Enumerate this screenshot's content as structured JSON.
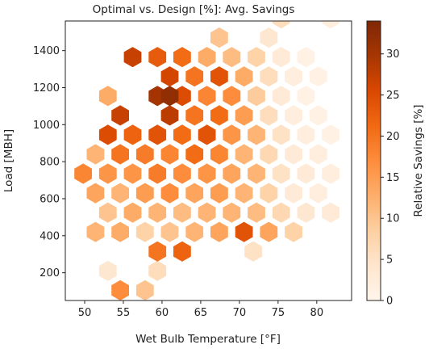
{
  "chart_data": {
    "type": "hexbin",
    "title": "Optimal vs. Design [%]: Avg. Savings",
    "xlabel": "Wet Bulb Temperature [°F]",
    "ylabel": "Load [MBH]",
    "xlim": [
      47.5,
      84.5
    ],
    "ylim": [
      50,
      1560
    ],
    "xticks": [
      50,
      55,
      60,
      65,
      70,
      75,
      80
    ],
    "yticks": [
      200,
      400,
      600,
      800,
      1000,
      1200,
      1400
    ],
    "colorbar": {
      "label": "Relative Savings [%]",
      "range": [
        0,
        34
      ],
      "ticks": [
        0,
        5,
        10,
        15,
        20,
        25,
        30
      ],
      "colormap": "Oranges",
      "colors": [
        "#fff5eb",
        "#fee6ce",
        "#fdd0a2",
        "#fdae6b",
        "#fd8d3c",
        "#f16913",
        "#d94801",
        "#a63603",
        "#7f2704"
      ]
    },
    "grid": false,
    "cells": [
      {
        "x": 54.6,
        "y": 105,
        "v": 17
      },
      {
        "x": 57.8,
        "y": 105,
        "v": 10
      },
      {
        "x": 53.0,
        "y": 210,
        "v": 4
      },
      {
        "x": 59.4,
        "y": 210,
        "v": 6
      },
      {
        "x": 59.4,
        "y": 315,
        "v": 20
      },
      {
        "x": 62.6,
        "y": 315,
        "v": 22
      },
      {
        "x": 71.8,
        "y": 315,
        "v": 5
      },
      {
        "x": 51.4,
        "y": 420,
        "v": 12
      },
      {
        "x": 54.6,
        "y": 420,
        "v": 13
      },
      {
        "x": 57.8,
        "y": 420,
        "v": 8
      },
      {
        "x": 61.0,
        "y": 420,
        "v": 10
      },
      {
        "x": 64.2,
        "y": 420,
        "v": 12
      },
      {
        "x": 67.4,
        "y": 420,
        "v": 14
      },
      {
        "x": 70.6,
        "y": 420,
        "v": 24
      },
      {
        "x": 73.8,
        "y": 420,
        "v": 14
      },
      {
        "x": 77.0,
        "y": 420,
        "v": 8
      },
      {
        "x": 53.0,
        "y": 525,
        "v": 10
      },
      {
        "x": 56.2,
        "y": 525,
        "v": 13
      },
      {
        "x": 59.4,
        "y": 525,
        "v": 12
      },
      {
        "x": 62.6,
        "y": 525,
        "v": 11
      },
      {
        "x": 65.8,
        "y": 525,
        "v": 12
      },
      {
        "x": 69.0,
        "y": 525,
        "v": 12
      },
      {
        "x": 72.2,
        "y": 525,
        "v": 11
      },
      {
        "x": 75.4,
        "y": 525,
        "v": 7
      },
      {
        "x": 78.6,
        "y": 525,
        "v": 4
      },
      {
        "x": 81.8,
        "y": 525,
        "v": 3
      },
      {
        "x": 51.4,
        "y": 630,
        "v": 14
      },
      {
        "x": 54.6,
        "y": 630,
        "v": 12
      },
      {
        "x": 57.8,
        "y": 630,
        "v": 15
      },
      {
        "x": 61.0,
        "y": 630,
        "v": 17
      },
      {
        "x": 64.2,
        "y": 630,
        "v": 14
      },
      {
        "x": 67.4,
        "y": 630,
        "v": 15
      },
      {
        "x": 70.6,
        "y": 630,
        "v": 12
      },
      {
        "x": 73.8,
        "y": 630,
        "v": 8
      },
      {
        "x": 77.0,
        "y": 630,
        "v": 3
      },
      {
        "x": 80.2,
        "y": 630,
        "v": 2
      },
      {
        "x": 49.8,
        "y": 735,
        "v": 18
      },
      {
        "x": 53.0,
        "y": 735,
        "v": 16
      },
      {
        "x": 56.2,
        "y": 735,
        "v": 16
      },
      {
        "x": 59.4,
        "y": 735,
        "v": 19
      },
      {
        "x": 62.6,
        "y": 735,
        "v": 17
      },
      {
        "x": 65.8,
        "y": 735,
        "v": 16
      },
      {
        "x": 69.0,
        "y": 735,
        "v": 14
      },
      {
        "x": 72.2,
        "y": 735,
        "v": 12
      },
      {
        "x": 75.4,
        "y": 735,
        "v": 5
      },
      {
        "x": 78.6,
        "y": 735,
        "v": 3
      },
      {
        "x": 81.8,
        "y": 735,
        "v": 2
      },
      {
        "x": 51.4,
        "y": 840,
        "v": 12
      },
      {
        "x": 54.6,
        "y": 840,
        "v": 20
      },
      {
        "x": 57.8,
        "y": 840,
        "v": 19
      },
      {
        "x": 61.0,
        "y": 840,
        "v": 18
      },
      {
        "x": 64.2,
        "y": 840,
        "v": 21
      },
      {
        "x": 67.4,
        "y": 840,
        "v": 18
      },
      {
        "x": 70.6,
        "y": 840,
        "v": 12
      },
      {
        "x": 73.8,
        "y": 840,
        "v": 7
      },
      {
        "x": 77.0,
        "y": 840,
        "v": 3
      },
      {
        "x": 80.2,
        "y": 840,
        "v": 2
      },
      {
        "x": 53.0,
        "y": 945,
        "v": 25
      },
      {
        "x": 56.2,
        "y": 945,
        "v": 22
      },
      {
        "x": 59.4,
        "y": 945,
        "v": 24
      },
      {
        "x": 62.6,
        "y": 945,
        "v": 21
      },
      {
        "x": 65.8,
        "y": 945,
        "v": 24
      },
      {
        "x": 69.0,
        "y": 945,
        "v": 16
      },
      {
        "x": 72.2,
        "y": 945,
        "v": 12
      },
      {
        "x": 75.4,
        "y": 945,
        "v": 5
      },
      {
        "x": 78.6,
        "y": 945,
        "v": 2
      },
      {
        "x": 81.8,
        "y": 945,
        "v": 1
      },
      {
        "x": 54.6,
        "y": 1050,
        "v": 27
      },
      {
        "x": 61.0,
        "y": 1050,
        "v": 28
      },
      {
        "x": 64.2,
        "y": 1050,
        "v": 20
      },
      {
        "x": 67.4,
        "y": 1050,
        "v": 21
      },
      {
        "x": 70.6,
        "y": 1050,
        "v": 15
      },
      {
        "x": 73.8,
        "y": 1050,
        "v": 6
      },
      {
        "x": 77.0,
        "y": 1050,
        "v": 2
      },
      {
        "x": 80.2,
        "y": 1050,
        "v": 1
      },
      {
        "x": 53.0,
        "y": 1155,
        "v": 13
      },
      {
        "x": 59.4,
        "y": 1155,
        "v": 30
      },
      {
        "x": 62.6,
        "y": 1155,
        "v": 25
      },
      {
        "x": 65.8,
        "y": 1155,
        "v": 18
      },
      {
        "x": 69.0,
        "y": 1155,
        "v": 17
      },
      {
        "x": 72.2,
        "y": 1155,
        "v": 9
      },
      {
        "x": 75.4,
        "y": 1155,
        "v": 3
      },
      {
        "x": 78.6,
        "y": 1155,
        "v": 1
      },
      {
        "x": 61.0,
        "y": 1155,
        "v": 32
      },
      {
        "x": 61.0,
        "y": 1260,
        "v": 26
      },
      {
        "x": 64.2,
        "y": 1260,
        "v": 20
      },
      {
        "x": 67.4,
        "y": 1260,
        "v": 24
      },
      {
        "x": 70.6,
        "y": 1260,
        "v": 13
      },
      {
        "x": 73.8,
        "y": 1260,
        "v": 6
      },
      {
        "x": 77.0,
        "y": 1260,
        "v": 2
      },
      {
        "x": 80.2,
        "y": 1260,
        "v": 1
      },
      {
        "x": 56.2,
        "y": 1365,
        "v": 27
      },
      {
        "x": 59.4,
        "y": 1365,
        "v": 23
      },
      {
        "x": 62.6,
        "y": 1365,
        "v": 21
      },
      {
        "x": 65.8,
        "y": 1365,
        "v": 13
      },
      {
        "x": 69.0,
        "y": 1365,
        "v": 11
      },
      {
        "x": 72.2,
        "y": 1365,
        "v": 8
      },
      {
        "x": 75.4,
        "y": 1365,
        "v": 3
      },
      {
        "x": 78.6,
        "y": 1365,
        "v": 1
      },
      {
        "x": 67.4,
        "y": 1470,
        "v": 10
      },
      {
        "x": 73.8,
        "y": 1470,
        "v": 4
      },
      {
        "x": 75.4,
        "y": 1575,
        "v": 6
      },
      {
        "x": 81.8,
        "y": 1575,
        "v": 2
      }
    ]
  }
}
